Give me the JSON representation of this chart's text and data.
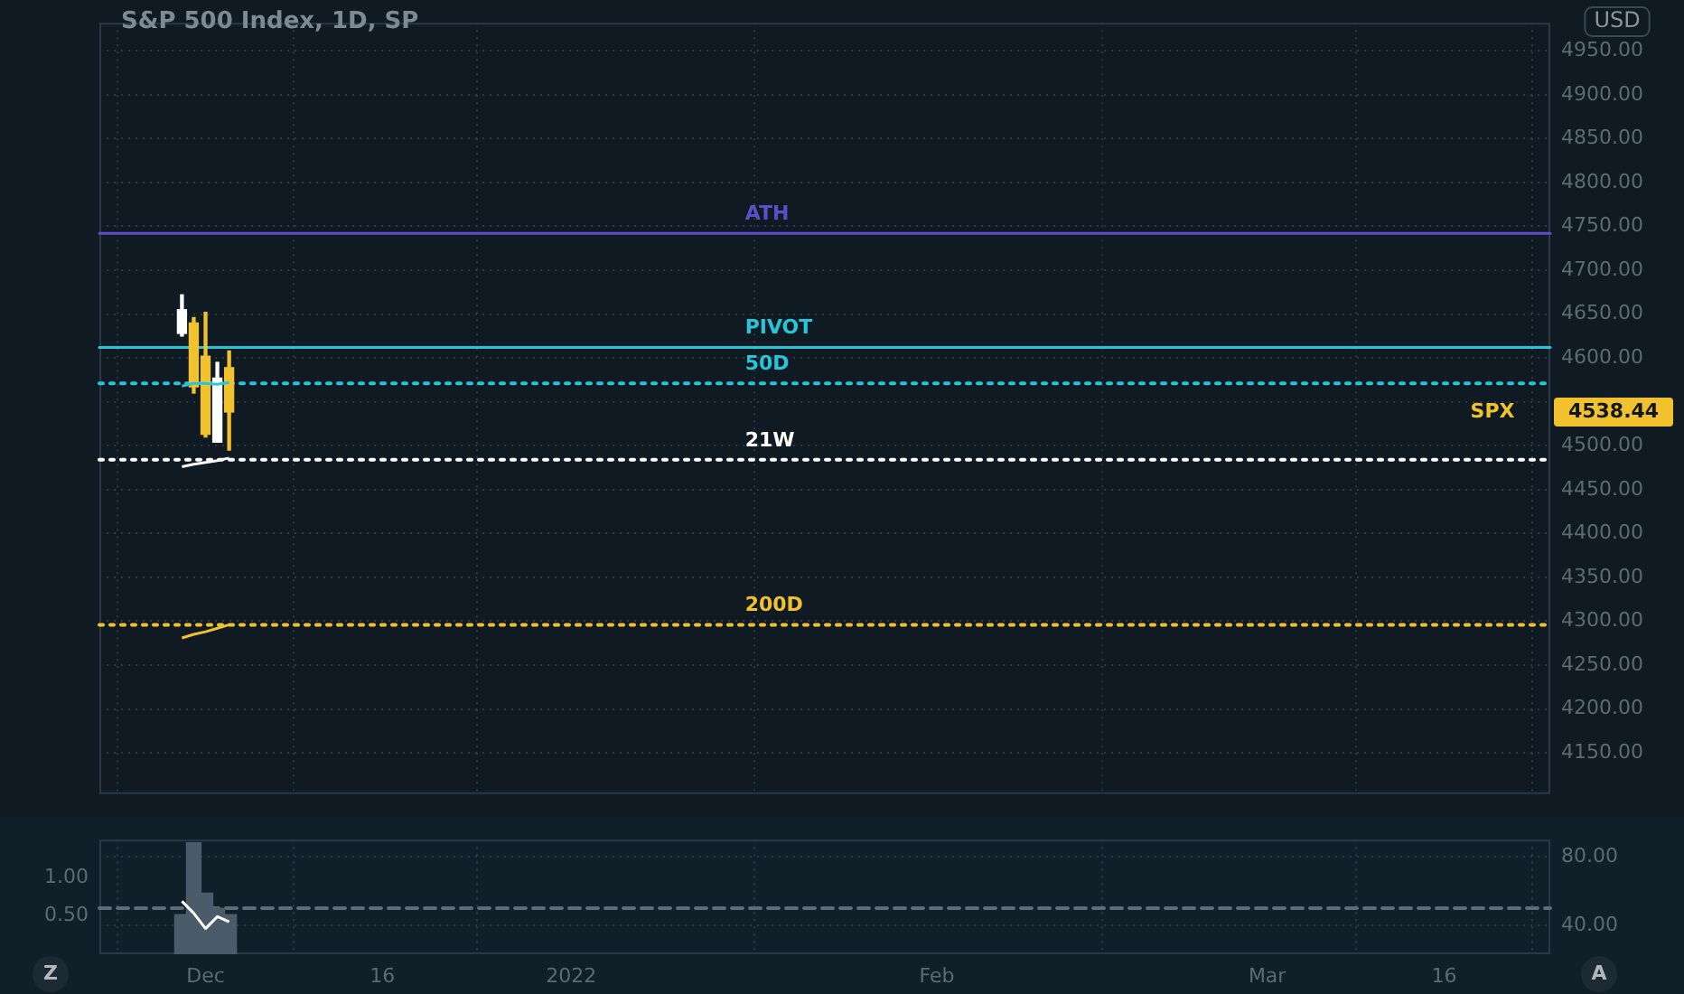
{
  "chart_data": [
    {
      "type": "candlestick",
      "title": "S&P 500 Index, 1D, SP",
      "x": [
        "2021-11-29",
        "2021-11-30",
        "2021-12-01",
        "2021-12-02",
        "2021-12-03"
      ],
      "ohlc": [
        [
          4628,
          4672,
          4625,
          4655
        ],
        [
          4640,
          4646,
          4560,
          4567
        ],
        [
          4602,
          4652,
          4510,
          4513
        ],
        [
          4504,
          4595,
          4504,
          4577
        ],
        [
          4589,
          4608,
          4495,
          4538.44
        ]
      ],
      "colors": [
        "#ffffff",
        "#f2c12e",
        "#f2c12e",
        "#ffffff",
        "#f2c12e"
      ],
      "series": [
        {
          "type": "line",
          "color": "#26c6da",
          "values": [
            4568,
            4571,
            4571,
            4570,
            4572
          ]
        },
        {
          "type": "line",
          "color": "#ffffff",
          "values": [
            4476,
            4479,
            4481,
            4483,
            4486
          ]
        },
        {
          "type": "line",
          "color": "#f2c12e",
          "values": [
            4281,
            4285,
            4288,
            4292,
            4296
          ]
        }
      ],
      "xlim": [
        "2021-11-22",
        "2022-03-25"
      ],
      "xticks": [
        {
          "value": "2021-12-01",
          "label": null
        },
        {
          "value": "2021-12-16",
          "label": null
        },
        {
          "value": "2022-01-01",
          "label": null
        },
        {
          "value": "2022-02-01",
          "label": null
        },
        {
          "value": "2022-03-01",
          "label": null
        },
        {
          "value": "2022-03-16",
          "label": null
        }
      ],
      "ylim": [
        4103,
        4982
      ],
      "yticks": [
        {
          "value": 4150,
          "label": "4150.00"
        },
        {
          "value": 4200,
          "label": "4200.00"
        },
        {
          "value": 4250,
          "label": "4250.00"
        },
        {
          "value": 4300,
          "label": "4300.00"
        },
        {
          "value": 4350,
          "label": "4350.00"
        },
        {
          "value": 4400,
          "label": "4400.00"
        },
        {
          "value": 4450,
          "label": "4450.00"
        },
        {
          "value": 4500,
          "label": "4500.00"
        },
        {
          "value": 4550,
          "label": null
        },
        {
          "value": 4600,
          "label": "4600.00"
        },
        {
          "value": 4650,
          "label": "4650.00"
        },
        {
          "value": 4700,
          "label": "4700.00"
        },
        {
          "value": 4750,
          "label": "4750.00"
        },
        {
          "value": 4800,
          "label": "4800.00"
        },
        {
          "value": 4850,
          "label": "4850.00"
        },
        {
          "value": 4900,
          "label": "4900.00"
        },
        {
          "value": 4950,
          "label": "4950.00"
        }
      ],
      "ref_lines": [
        {
          "axis": "y",
          "value": 4742,
          "label": "ATH",
          "color": "#5b4fc9",
          "line_style": "solid"
        },
        {
          "axis": "y",
          "value": 4612,
          "label": "PIVOT",
          "color": "#26c6da",
          "line_style": "solid"
        },
        {
          "axis": "y",
          "value": 4571,
          "label": "50D",
          "color": "#26c6da",
          "line_style": "dotted"
        },
        {
          "axis": "y",
          "value": 4484,
          "label": "21W",
          "color": "#ffffff",
          "line_style": "dotted"
        },
        {
          "axis": "y",
          "value": 4296,
          "label": "200D",
          "color": "#f2c12e",
          "line_style": "dotted"
        }
      ],
      "annotations": [
        "USD",
        "SPX",
        "4538.44"
      ],
      "grid": true,
      "tick_labels": "y"
    },
    {
      "type": "bar",
      "x": [
        "2021-11-29",
        "2021-11-30",
        "2021-12-01",
        "2021-12-02",
        "2021-12-03"
      ],
      "series": [
        {
          "type": "bar",
          "color": "#4a5c6a",
          "values": [
            0.52,
            1.46,
            0.8,
            0.6,
            0.52
          ]
        },
        {
          "type": "line",
          "axis": "y2",
          "color": "#ffffff",
          "values": [
            54,
            47,
            38,
            45,
            42
          ]
        }
      ],
      "xlim": [
        "2021-11-22",
        "2022-03-25"
      ],
      "xticks": [
        {
          "value": "2021-12-01",
          "label": "Dec"
        },
        {
          "value": "2021-12-16",
          "label": "16"
        },
        {
          "value": "2022-01-01",
          "label": "2022"
        },
        {
          "value": "2022-02-01",
          "label": "Feb"
        },
        {
          "value": "2022-03-01",
          "label": "Mar"
        },
        {
          "value": "2022-03-16",
          "label": "16"
        }
      ],
      "ylim": [
        0,
        1.5
      ],
      "yticks": [
        {
          "value": 0.5,
          "label": "0.50"
        },
        {
          "value": 1,
          "label": "1.00"
        }
      ],
      "y2lim": [
        23,
        90
      ],
      "y2ticks": [
        {
          "value": 40,
          "label": "40.00"
        },
        {
          "value": 80,
          "label": "80.00"
        }
      ],
      "ref_lines": [
        {
          "axis": "y2",
          "value": 50,
          "color": "#5d6d78",
          "line_style": "dashed"
        }
      ],
      "annotations": [
        "Z",
        "A"
      ],
      "grid": true
    }
  ]
}
